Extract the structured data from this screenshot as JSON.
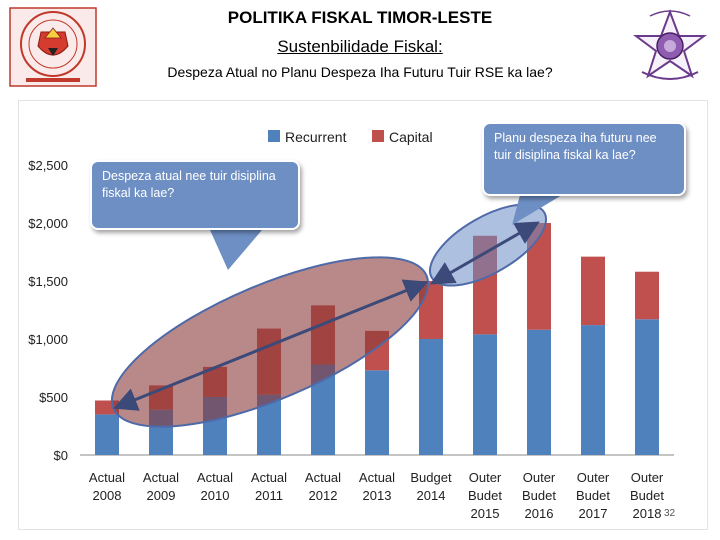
{
  "header": {
    "title": "POLITIKA FISKAL TIMOR-LESTE",
    "subtitle": "Sustenbilidade Fiskal:",
    "description": "Despeza Atual no Planu Despeza Iha Futuru Tuir RSE ka lae?"
  },
  "logos": {
    "left": "timor-leste-ministry-seal",
    "right": "star-emblem-logo"
  },
  "callouts": {
    "left": "Despeza atual nee tuir disiplina fiskal ka lae?",
    "right": "Planu despeza iha futuru nee tuir disiplina fiskal ka lae?"
  },
  "slide_number": "32",
  "colors": {
    "recurrent": "#4f81bd",
    "capital": "#c0504d",
    "ellipse_left": "#8b3a3a",
    "ellipse_right": "#6b8cc7",
    "arrow": "#3b4a78"
  },
  "chart_data": {
    "type": "bar",
    "stacked": true,
    "categories": [
      [
        "Actual",
        "2008"
      ],
      [
        "Actual",
        "2009"
      ],
      [
        "Actual",
        "2010"
      ],
      [
        "Actual",
        "2011"
      ],
      [
        "Actual",
        "2012"
      ],
      [
        "Actual",
        "2013"
      ],
      [
        "Budget",
        "2014"
      ],
      [
        "Outer",
        "Budet",
        "2015"
      ],
      [
        "Outer",
        "Budet",
        "2016"
      ],
      [
        "Outer",
        "Budet",
        "2017"
      ],
      [
        "Outer",
        "Budet",
        "2018"
      ]
    ],
    "series": [
      {
        "name": "Recurrent",
        "values": [
          350,
          390,
          500,
          520,
          780,
          730,
          1000,
          1040,
          1080,
          1120,
          1170
        ]
      },
      {
        "name": "Capital",
        "values": [
          120,
          210,
          260,
          570,
          510,
          340,
          500,
          850,
          920,
          590,
          410
        ]
      }
    ],
    "y_ticks": [
      "$0",
      "$500",
      "$1,000",
      "$1,500",
      "$2,000",
      "$2,500"
    ],
    "ylim": [
      0,
      2500
    ],
    "legend_position": "top",
    "grid": false
  }
}
